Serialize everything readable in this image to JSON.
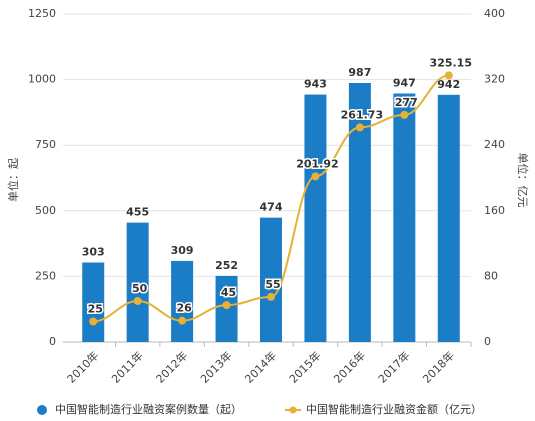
{
  "chart_data": {
    "type": "bar",
    "categories": [
      "2010年",
      "2011年",
      "2012年",
      "2013年",
      "2014年",
      "2015年",
      "2016年",
      "2017年",
      "2018年"
    ],
    "series": [
      {
        "name": "中国智能制造行业融资案例数量（起）",
        "type": "bar",
        "color": "#1a7dc6",
        "values": [
          303,
          455,
          309,
          252,
          474,
          943,
          987,
          947,
          942
        ]
      },
      {
        "name": "中国智能制造行业融资金额（亿元）",
        "type": "line",
        "axis": "y2",
        "color": "#e6b135",
        "values": [
          25,
          50,
          26,
          45,
          55,
          201.92,
          261.73,
          277,
          325.15
        ]
      }
    ],
    "ylabel": "单位：起",
    "y2label": "单位：亿元",
    "ylim": [
      0,
      1250
    ],
    "yticks": [
      0,
      250,
      500,
      750,
      1000,
      1250
    ],
    "y2lim": [
      0,
      400
    ],
    "y2ticks": [
      0,
      80,
      160,
      240,
      320,
      400
    ],
    "grid": true,
    "legend": "bottom"
  }
}
